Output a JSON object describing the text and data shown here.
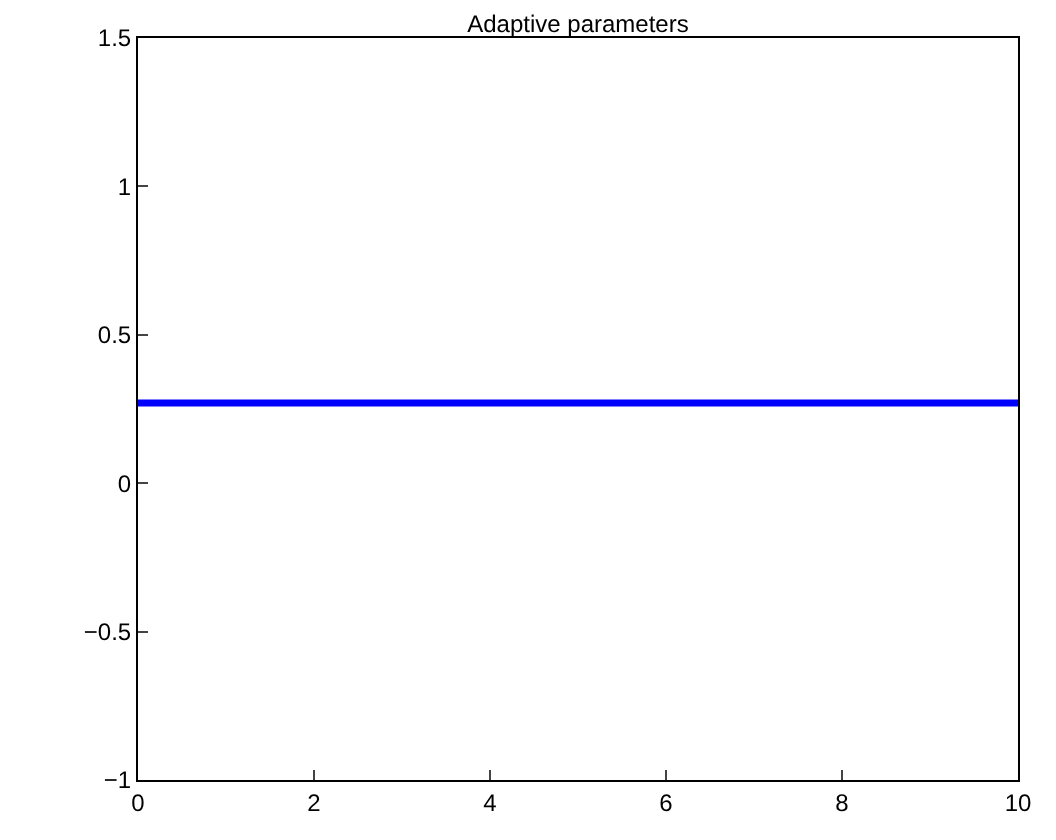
{
  "chart_data": {
    "type": "line",
    "title": "Adaptive parameters",
    "x": [
      0,
      10
    ],
    "series": [
      {
        "color": "#0000ff",
        "values": [
          0.27,
          0.27
        ]
      }
    ],
    "xlim": [
      0,
      10
    ],
    "xticks": [
      0,
      2,
      4,
      6,
      8,
      10
    ],
    "ylim": [
      -1,
      1.5
    ],
    "yticks": [
      -1,
      -0.5,
      0,
      0.5,
      1,
      1.5
    ],
    "marker": "none",
    "line_style": "solid"
  }
}
